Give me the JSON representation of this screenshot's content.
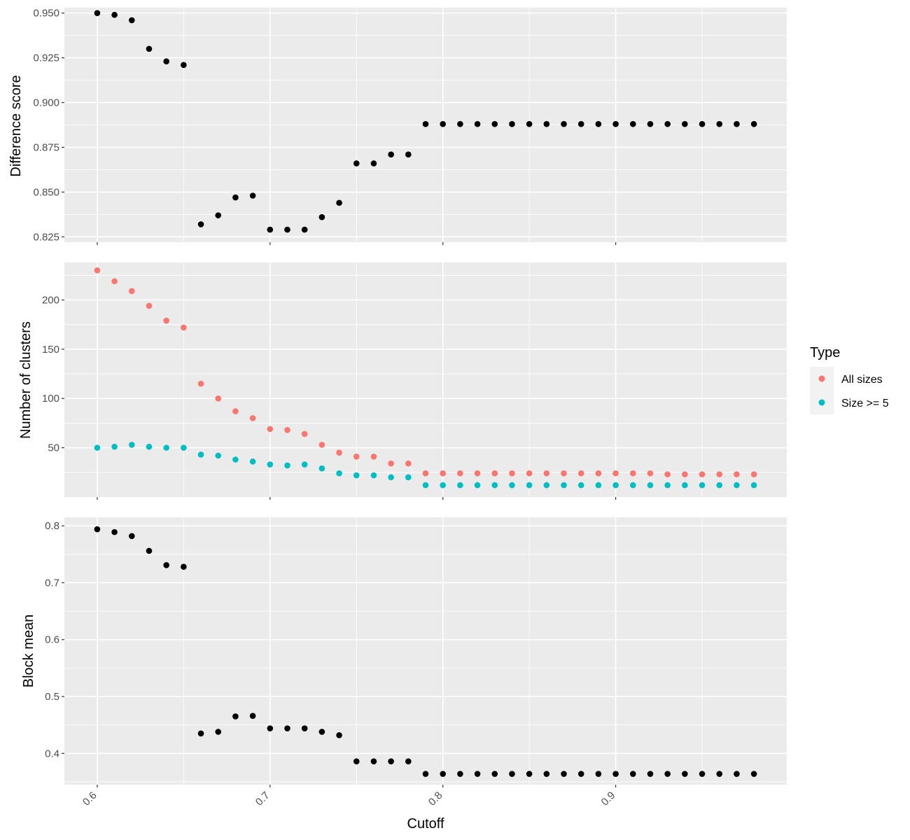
{
  "chart_data": [
    {
      "type": "scatter",
      "ylabel": "Difference score",
      "ylim": [
        0.822,
        0.953
      ],
      "yticks": [
        0.825,
        0.85,
        0.875,
        0.9,
        0.925,
        0.95
      ],
      "ytick_labels": [
        "0.825",
        "0.850",
        "0.875",
        "0.900",
        "0.925",
        "0.950"
      ],
      "series": [
        {
          "color": "#000000",
          "x": [
            0.6,
            0.61,
            0.62,
            0.63,
            0.64,
            0.65,
            0.66,
            0.67,
            0.68,
            0.69,
            0.7,
            0.71,
            0.72,
            0.73,
            0.74,
            0.75,
            0.76,
            0.77,
            0.78,
            0.79,
            0.8,
            0.81,
            0.82,
            0.83,
            0.84,
            0.85,
            0.86,
            0.87,
            0.88,
            0.89,
            0.9,
            0.91,
            0.92,
            0.93,
            0.94,
            0.95,
            0.96,
            0.97,
            0.98
          ],
          "y": [
            0.95,
            0.949,
            0.946,
            0.93,
            0.923,
            0.921,
            0.832,
            0.837,
            0.847,
            0.848,
            0.829,
            0.829,
            0.829,
            0.836,
            0.844,
            0.866,
            0.866,
            0.871,
            0.871,
            0.888,
            0.888,
            0.888,
            0.888,
            0.888,
            0.888,
            0.888,
            0.888,
            0.888,
            0.888,
            0.888,
            0.888,
            0.888,
            0.888,
            0.888,
            0.888,
            0.888,
            0.888,
            0.888,
            0.888
          ]
        }
      ]
    },
    {
      "type": "scatter",
      "ylabel": "Number of clusters",
      "ylim": [
        0,
        238
      ],
      "yticks": [
        50,
        100,
        150,
        200
      ],
      "ytick_labels": [
        "50",
        "100",
        "150",
        "200"
      ],
      "legend": {
        "title": "Type",
        "position": "right"
      },
      "series": [
        {
          "name": "All sizes",
          "color": "#F8766D",
          "x": [
            0.6,
            0.61,
            0.62,
            0.63,
            0.64,
            0.65,
            0.66,
            0.67,
            0.68,
            0.69,
            0.7,
            0.71,
            0.72,
            0.73,
            0.74,
            0.75,
            0.76,
            0.77,
            0.78,
            0.79,
            0.8,
            0.81,
            0.82,
            0.83,
            0.84,
            0.85,
            0.86,
            0.87,
            0.88,
            0.89,
            0.9,
            0.91,
            0.92,
            0.93,
            0.94,
            0.95,
            0.96,
            0.97,
            0.98
          ],
          "y": [
            230,
            219,
            209,
            194,
            179,
            172,
            115,
            100,
            87,
            80,
            69,
            68,
            64,
            53,
            45,
            41,
            41,
            34,
            34,
            24,
            24,
            24,
            24,
            24,
            24,
            24,
            24,
            24,
            24,
            24,
            24,
            24,
            24,
            23,
            23,
            23,
            23,
            23,
            23
          ]
        },
        {
          "name": "Size >= 5",
          "color": "#00BFC4",
          "x": [
            0.6,
            0.61,
            0.62,
            0.63,
            0.64,
            0.65,
            0.66,
            0.67,
            0.68,
            0.69,
            0.7,
            0.71,
            0.72,
            0.73,
            0.74,
            0.75,
            0.76,
            0.77,
            0.78,
            0.79,
            0.8,
            0.81,
            0.82,
            0.83,
            0.84,
            0.85,
            0.86,
            0.87,
            0.88,
            0.89,
            0.9,
            0.91,
            0.92,
            0.93,
            0.94,
            0.95,
            0.96,
            0.97,
            0.98
          ],
          "y": [
            50,
            51,
            53,
            51,
            50,
            50,
            43,
            42,
            38,
            36,
            33,
            32,
            33,
            29,
            24,
            22,
            22,
            20,
            20,
            12,
            12,
            12,
            12,
            12,
            12,
            12,
            12,
            12,
            12,
            12,
            12,
            12,
            12,
            12,
            12,
            12,
            12,
            12,
            12
          ]
        }
      ]
    },
    {
      "type": "scatter",
      "ylabel": "Block mean",
      "xlabel": "Cutoff",
      "ylim": [
        0.345,
        0.815
      ],
      "yticks": [
        0.4,
        0.5,
        0.6,
        0.7,
        0.8
      ],
      "ytick_labels": [
        "0.4",
        "0.5",
        "0.6",
        "0.7",
        "0.8"
      ],
      "series": [
        {
          "color": "#000000",
          "x": [
            0.6,
            0.61,
            0.62,
            0.63,
            0.64,
            0.65,
            0.66,
            0.67,
            0.68,
            0.69,
            0.7,
            0.71,
            0.72,
            0.73,
            0.74,
            0.75,
            0.76,
            0.77,
            0.78,
            0.79,
            0.8,
            0.81,
            0.82,
            0.83,
            0.84,
            0.85,
            0.86,
            0.87,
            0.88,
            0.89,
            0.9,
            0.91,
            0.92,
            0.93,
            0.94,
            0.95,
            0.96,
            0.97,
            0.98
          ],
          "y": [
            0.794,
            0.789,
            0.782,
            0.756,
            0.731,
            0.728,
            0.435,
            0.438,
            0.465,
            0.466,
            0.444,
            0.444,
            0.444,
            0.438,
            0.432,
            0.386,
            0.386,
            0.386,
            0.386,
            0.364,
            0.364,
            0.364,
            0.364,
            0.364,
            0.364,
            0.364,
            0.364,
            0.364,
            0.364,
            0.364,
            0.364,
            0.364,
            0.364,
            0.364,
            0.364,
            0.364,
            0.364,
            0.364,
            0.364
          ]
        }
      ]
    }
  ],
  "shared_x": {
    "xlim": [
      0.581,
      0.999
    ],
    "ticks": [
      0.6,
      0.7,
      0.8,
      0.9
    ],
    "tick_labels": [
      "0.6",
      "0.7",
      "0.8",
      "0.9"
    ]
  },
  "theme": {
    "panel_background": "#EBEBEB",
    "grid_color": "#FFFFFF",
    "point_color": "#000000"
  }
}
